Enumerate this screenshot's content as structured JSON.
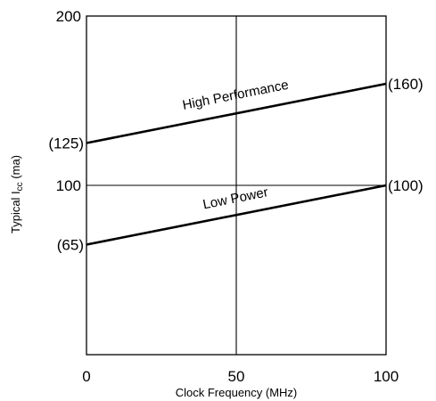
{
  "chart_data": {
    "type": "line",
    "xlabel": "Clock Frequency (MHz)",
    "ylabel": {
      "main": "Typical I",
      "subscript": "cc",
      "suffix": " (ma)"
    },
    "xlim": [
      0,
      100
    ],
    "ylim": [
      0,
      200
    ],
    "xticks": [
      "0",
      "50",
      "100"
    ],
    "yticks": [
      "100",
      "200"
    ],
    "grid": true,
    "series": [
      {
        "name": "High Performance",
        "x": [
          0,
          100
        ],
        "y": [
          125,
          160
        ],
        "start_label": "(125)",
        "end_label": "(160)"
      },
      {
        "name": "Low Power",
        "x": [
          0,
          100
        ],
        "y": [
          65,
          100
        ],
        "start_label": "(65)",
        "end_label": "(100)"
      }
    ]
  }
}
